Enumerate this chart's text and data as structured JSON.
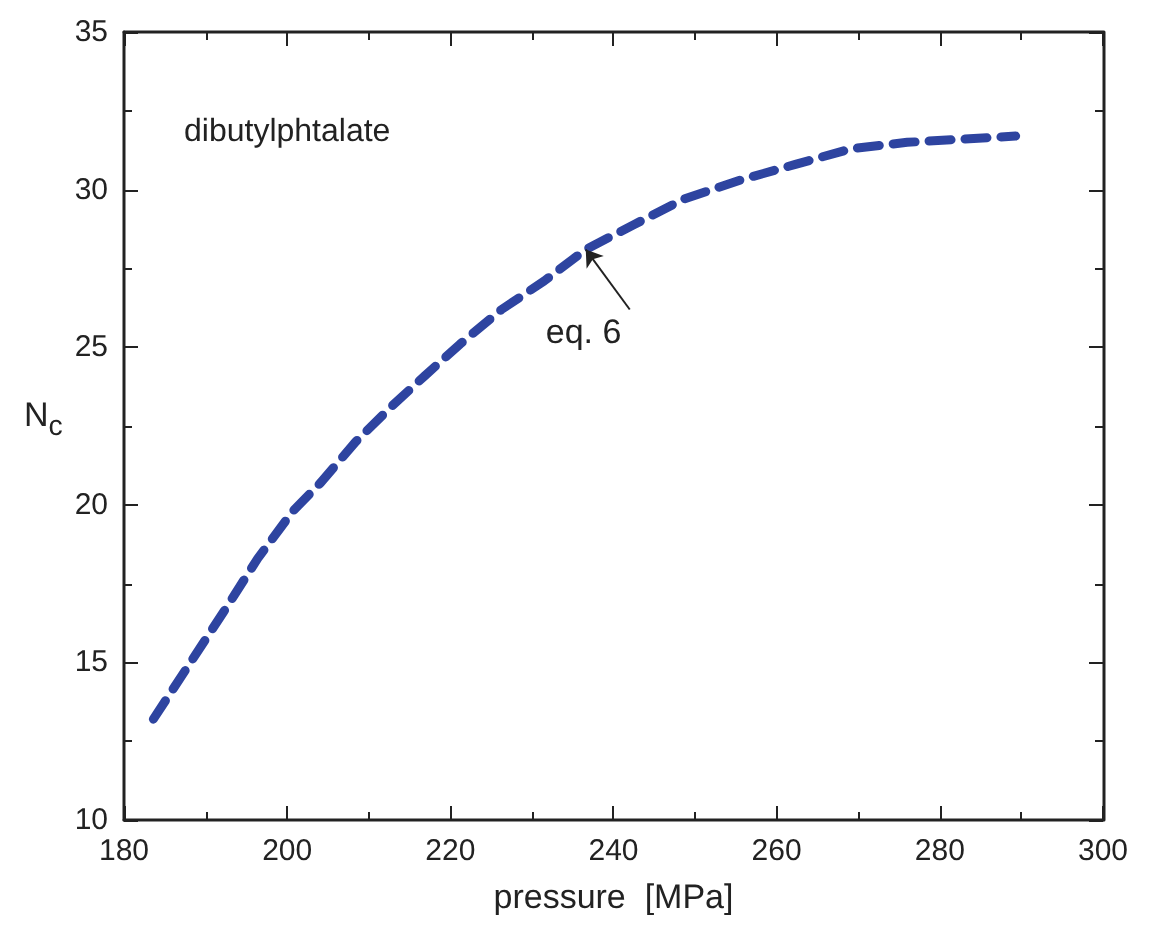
{
  "chart_data": {
    "type": "line",
    "xlabel": "pressure  [MPa]",
    "ylabel": "N$_{c}$",
    "x": [
      183.6,
      187.9,
      192.2,
      196.4,
      200.7,
      204.1,
      208.4,
      212.7,
      216.9,
      221.2,
      226.3,
      231.5,
      236.6,
      242.6,
      248.6,
      255.5,
      262.3,
      269.2,
      276.0,
      282.9,
      289.3
    ],
    "series": [
      {
        "color": "#2e44a0",
        "values": [
          13.2,
          14.9,
          16.6,
          18.3,
          19.8,
          20.7,
          22.0,
          23.1,
          24.1,
          25.1,
          26.2,
          27.1,
          28.1,
          28.9,
          29.7,
          30.3,
          30.8,
          31.3,
          31.5,
          31.6,
          31.7
        ]
      }
    ],
    "xlim": [
      180,
      300
    ],
    "xticks": [
      180,
      200,
      220,
      240,
      260,
      280,
      300
    ],
    "ylim": [
      10,
      35
    ],
    "yticks": [
      10,
      15,
      20,
      25,
      30,
      35
    ],
    "annotations": [
      "dibutylphtalate",
      {
        "text": "eq. 6",
        "x": 236.6,
        "y": 28.1
      }
    ],
    "grid": false,
    "marker": "none",
    "line_style": "dashed"
  }
}
